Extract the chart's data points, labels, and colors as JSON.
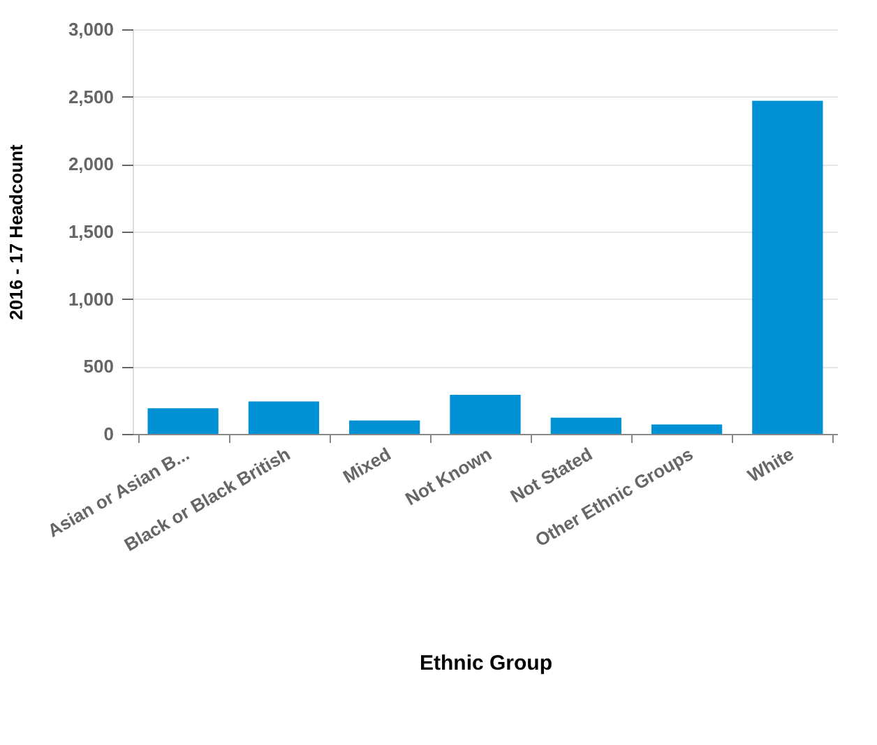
{
  "chart_data": {
    "type": "bar",
    "xlabel": "Ethnic Group",
    "ylabel": "2016 - 17 Headcount",
    "categories": [
      "Asian or Asian B...",
      "Black or Black British",
      "Mixed",
      "Not Known",
      "Not Stated",
      "Other Ethnic Groups",
      "White"
    ],
    "values": [
      190,
      240,
      100,
      290,
      120,
      70,
      2470
    ],
    "color": "#0091d5",
    "ylim": [
      0,
      3000
    ],
    "yticks": [
      {
        "value": 0,
        "label": "0"
      },
      {
        "value": 500,
        "label": "500"
      },
      {
        "value": 1000,
        "label": "1,000"
      },
      {
        "value": 1500,
        "label": "1,500"
      },
      {
        "value": 2000,
        "label": "2,000"
      },
      {
        "value": 2500,
        "label": "2,500"
      },
      {
        "value": 3000,
        "label": "3,000"
      }
    ],
    "grid": "y"
  }
}
